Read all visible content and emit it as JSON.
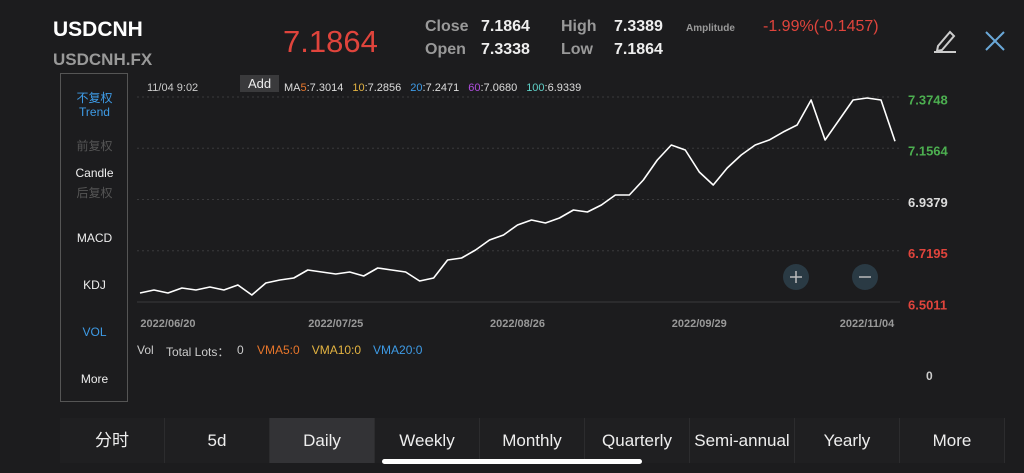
{
  "header": {
    "symbol": "USDCNH",
    "code": "USDCNH.FX",
    "price": "7.1864",
    "close_label": "Close",
    "close": "7.1864",
    "open_label": "Open",
    "open": "7.3338",
    "high_label": "High",
    "high": "7.3389",
    "low_label": "Low",
    "low": "7.1864",
    "amplitude_label": "Amplitude",
    "change": "-1.99%(-0.1457)"
  },
  "sidebar": [
    "不复权",
    "Trend",
    "前复权",
    "Candle",
    "后复权",
    "MACD",
    "KDJ",
    "VOL",
    "More"
  ],
  "chart_info": {
    "time": "11/04 9:02",
    "add": "Add",
    "ma": [
      {
        "prefix": "MA",
        "period": "5",
        "value": ":7.3014",
        "color": "#e8762b"
      },
      {
        "period": "10",
        "value": ":7.2856",
        "color": "#e3b341"
      },
      {
        "period": "20",
        "value": ":7.2471",
        "color": "#3e9be6"
      },
      {
        "period": "60",
        "value": ":7.0680",
        "color": "#b14fe0"
      },
      {
        "period": "100",
        "value": ":6.9339",
        "color": "#5fd0c8"
      }
    ]
  },
  "chart_data": {
    "type": "line",
    "color": "#ffffff",
    "categories": [
      null,
      null,
      "2022/06/20",
      null,
      null,
      null,
      null,
      null,
      null,
      null,
      null,
      null,
      null,
      null,
      "2022/07/25",
      null,
      null,
      null,
      null,
      null,
      null,
      null,
      null,
      null,
      null,
      null,
      null,
      "2022/08/26",
      null,
      null,
      null,
      null,
      null,
      null,
      null,
      null,
      null,
      null,
      null,
      null,
      "2022/09/29",
      null,
      null,
      null,
      null,
      null,
      null,
      null,
      null,
      null,
      null,
      null,
      "2022/11/04",
      null,
      null
    ],
    "values": [
      6.5395,
      6.5522,
      6.5395,
      6.5608,
      6.5522,
      6.565,
      6.5522,
      6.5736,
      6.5309,
      6.5821,
      6.5949,
      6.6034,
      6.6375,
      6.629,
      6.6204,
      6.629,
      6.6119,
      6.646,
      6.6375,
      6.629,
      6.5906,
      6.6034,
      6.6801,
      6.6886,
      6.7227,
      6.7653,
      6.7867,
      6.8293,
      6.8506,
      6.8378,
      6.8591,
      6.8932,
      6.8847,
      6.9145,
      6.9571,
      6.9571,
      7.0211,
      7.1063,
      7.1702,
      7.1489,
      7.0552,
      6.9998,
      7.0722,
      7.1276,
      7.1702,
      7.1915,
      7.2256,
      7.2555,
      7.362,
      7.1915,
      7.2768,
      7.362,
      7.3705,
      7.362,
      7.1864
    ],
    "ylim": [
      6.5011,
      7.3748
    ],
    "yticks": [
      7.3748,
      7.1564,
      6.9379,
      6.7195,
      6.5011
    ],
    "ytick_colors": [
      "#4caf50",
      "#4caf50",
      "#dddddd",
      "#e0443c",
      "#e0443c"
    ],
    "grid": true
  },
  "volume": {
    "label": "Vol",
    "total_label": "Total Lots：",
    "total": "0",
    "vma": [
      {
        "text": "VMA5:0",
        "color": "#e8762b"
      },
      {
        "text": "VMA10:0",
        "color": "#e3b341"
      },
      {
        "text": "VMA20:0",
        "color": "#3e9be6"
      }
    ],
    "axis_label": "0"
  },
  "tabs": [
    "分时",
    "5d",
    "Daily",
    "Weekly",
    "Monthly",
    "Quarterly",
    "Semi-annual",
    "Yearly",
    "More"
  ],
  "selected_tab": 2
}
